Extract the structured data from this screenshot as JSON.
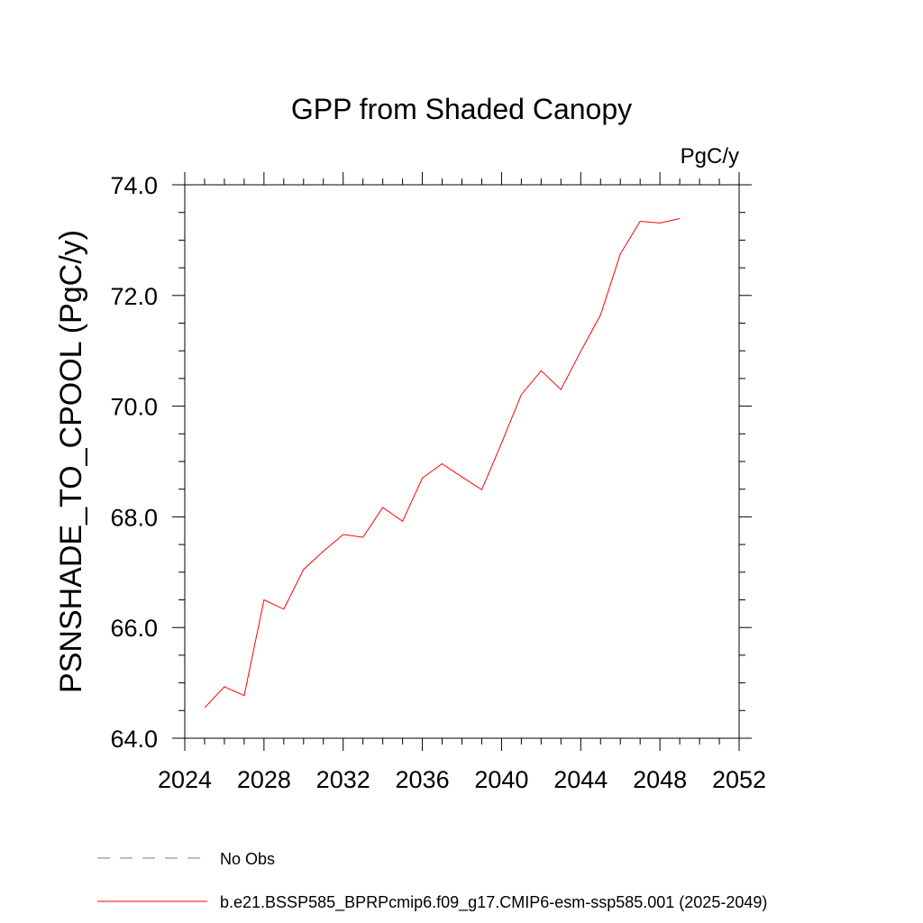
{
  "chart_data": {
    "type": "line",
    "title": "GPP from Shaded Canopy",
    "units_label": "PgC/y",
    "ylabel": "PSNSHADE_TO_CPOOL  (PgC/y)",
    "xlabel": "",
    "xlim": [
      2024,
      2052
    ],
    "ylim": [
      64.0,
      74.0
    ],
    "x_ticks": [
      2024,
      2028,
      2032,
      2036,
      2040,
      2044,
      2048,
      2052
    ],
    "x_tick_labels": [
      "2024",
      "2028",
      "2032",
      "2036",
      "2040",
      "2044",
      "2048",
      "2052"
    ],
    "y_ticks": [
      64.0,
      66.0,
      68.0,
      70.0,
      72.0,
      74.0
    ],
    "y_tick_labels": [
      "64.0",
      "66.0",
      "68.0",
      "70.0",
      "72.0",
      "74.0"
    ],
    "grid": false,
    "legend_position": "bottom-left",
    "series": [
      {
        "name": "b.e21.BSSP585_BPRPcmip6.f09_g17.CMIP6-esm-ssp585.001 (2025-2049)",
        "color": "#ff0000",
        "style": "solid",
        "x": [
          2025,
          2026,
          2027,
          2028,
          2029,
          2030,
          2031,
          2032,
          2033,
          2034,
          2035,
          2036,
          2037,
          2038,
          2039,
          2040,
          2041,
          2042,
          2043,
          2044,
          2045,
          2046,
          2047,
          2048,
          2049
        ],
        "values": [
          64.55,
          64.93,
          64.77,
          66.5,
          66.33,
          67.05,
          67.38,
          67.68,
          67.63,
          68.17,
          67.92,
          68.7,
          68.96,
          68.72,
          68.49,
          69.33,
          70.21,
          70.64,
          70.3,
          70.99,
          71.65,
          72.75,
          73.34,
          73.31,
          73.39
        ]
      }
    ],
    "legend": [
      {
        "label": "No Obs",
        "color": "#7b6fb0",
        "style": "dashed"
      },
      {
        "label": "b.e21.BSSP585_BPRPcmip6.f09_g17.CMIP6-esm-ssp585.001 (2025-2049)",
        "color": "#ff0000",
        "style": "solid"
      }
    ]
  }
}
